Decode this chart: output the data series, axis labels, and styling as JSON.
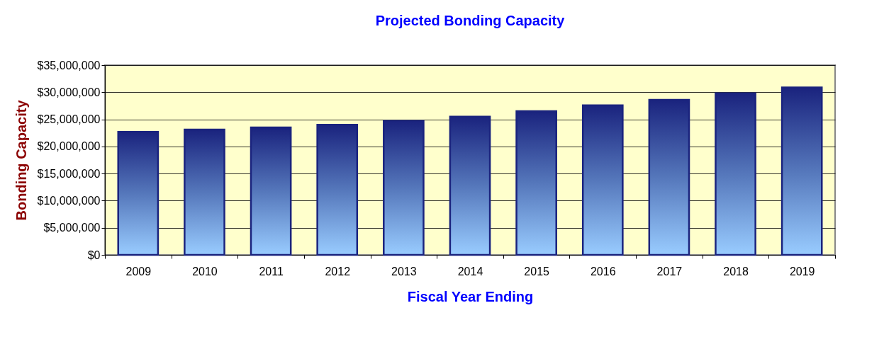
{
  "chart_data": {
    "type": "bar",
    "title": "Projected Bonding Capacity",
    "xlabel": "Fiscal Year Ending",
    "ylabel": "Bonding Capacity",
    "categories": [
      "2009",
      "2010",
      "2011",
      "2012",
      "2013",
      "2014",
      "2015",
      "2016",
      "2017",
      "2018",
      "2019"
    ],
    "values": [
      22700000,
      23100000,
      23500000,
      24000000,
      24700000,
      25500000,
      26500000,
      27600000,
      28600000,
      29800000,
      30900000
    ],
    "color": "#1a237e",
    "ylim": [
      0,
      35000000
    ],
    "yticks": [
      {
        "value": 0,
        "label": "$0"
      },
      {
        "value": 5000000,
        "label": "$5,000,000"
      },
      {
        "value": 10000000,
        "label": "$10,000,000"
      },
      {
        "value": 15000000,
        "label": "$15,000,000"
      },
      {
        "value": 20000000,
        "label": "$20,000,000"
      },
      {
        "value": 25000000,
        "label": "$25,000,000"
      },
      {
        "value": 30000000,
        "label": "$30,000,000"
      },
      {
        "value": 35000000,
        "label": "$35,000,000"
      }
    ],
    "grid": "y"
  }
}
